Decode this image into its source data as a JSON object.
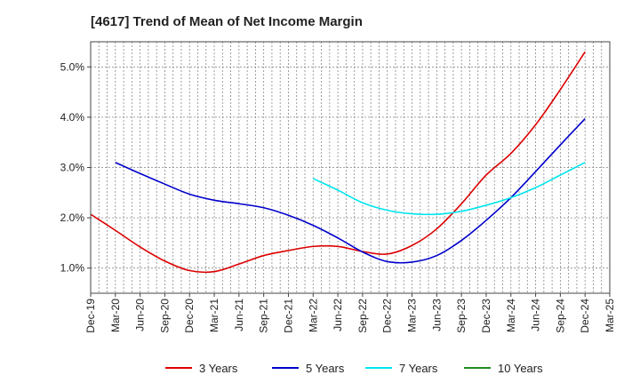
{
  "chart_data": {
    "type": "line",
    "title": "[4617]  Trend of Mean of Net Income Margin",
    "xlabel": "",
    "ylabel": "",
    "x_ticks": [
      "Dec-19",
      "Mar-20",
      "Jun-20",
      "Sep-20",
      "Dec-20",
      "Mar-21",
      "Jun-21",
      "Sep-21",
      "Dec-21",
      "Mar-22",
      "Jun-22",
      "Sep-22",
      "Dec-22",
      "Mar-23",
      "Jun-23",
      "Sep-23",
      "Dec-23",
      "Mar-24",
      "Jun-24",
      "Sep-24",
      "Dec-24",
      "Mar-25"
    ],
    "y_ticks": [
      "1.0%",
      "2.0%",
      "3.0%",
      "4.0%",
      "5.0%"
    ],
    "y_tick_values": [
      1.0,
      2.0,
      3.0,
      4.0,
      5.0
    ],
    "ylim": [
      0.5,
      5.5
    ],
    "grid": true,
    "legend_position": "bottom",
    "series": [
      {
        "name": "3 Years",
        "color": "#dd0000",
        "x": [
          "Dec-19",
          "Mar-20",
          "Jun-20",
          "Sep-20",
          "Dec-20",
          "Mar-21",
          "Jun-21",
          "Sep-21",
          "Dec-21",
          "Mar-22",
          "Jun-22",
          "Sep-22",
          "Dec-22",
          "Mar-23",
          "Jun-23",
          "Sep-23",
          "Dec-23",
          "Mar-24",
          "Jun-24",
          "Sep-24",
          "Dec-24"
        ],
        "values": [
          2.07,
          1.75,
          1.42,
          1.14,
          0.95,
          0.93,
          1.08,
          1.25,
          1.35,
          1.43,
          1.43,
          1.33,
          1.28,
          1.45,
          1.78,
          2.28,
          2.85,
          3.28,
          3.85,
          4.55,
          5.3
        ]
      },
      {
        "name": "5 Years",
        "color": "#0000cc",
        "x": [
          "Mar-20",
          "Jun-20",
          "Sep-20",
          "Dec-20",
          "Mar-21",
          "Jun-21",
          "Sep-21",
          "Dec-21",
          "Mar-22",
          "Jun-22",
          "Sep-22",
          "Dec-22",
          "Mar-23",
          "Jun-23",
          "Sep-23",
          "Dec-23",
          "Mar-24",
          "Jun-24",
          "Sep-24",
          "Dec-24"
        ],
        "values": [
          3.1,
          2.88,
          2.67,
          2.47,
          2.35,
          2.28,
          2.2,
          2.05,
          1.85,
          1.6,
          1.32,
          1.13,
          1.12,
          1.25,
          1.55,
          1.95,
          2.4,
          2.92,
          3.45,
          3.97
        ]
      },
      {
        "name": "7 Years",
        "color": "#00e5ee",
        "x": [
          "Mar-22",
          "Jun-22",
          "Sep-22",
          "Dec-22",
          "Mar-23",
          "Jun-23",
          "Sep-23",
          "Dec-23",
          "Mar-24",
          "Jun-24",
          "Sep-24",
          "Dec-24"
        ],
        "values": [
          2.78,
          2.55,
          2.3,
          2.15,
          2.08,
          2.07,
          2.13,
          2.25,
          2.4,
          2.6,
          2.85,
          3.1
        ]
      },
      {
        "name": "10 Years",
        "color": "#228b22",
        "x": [],
        "values": []
      }
    ]
  }
}
